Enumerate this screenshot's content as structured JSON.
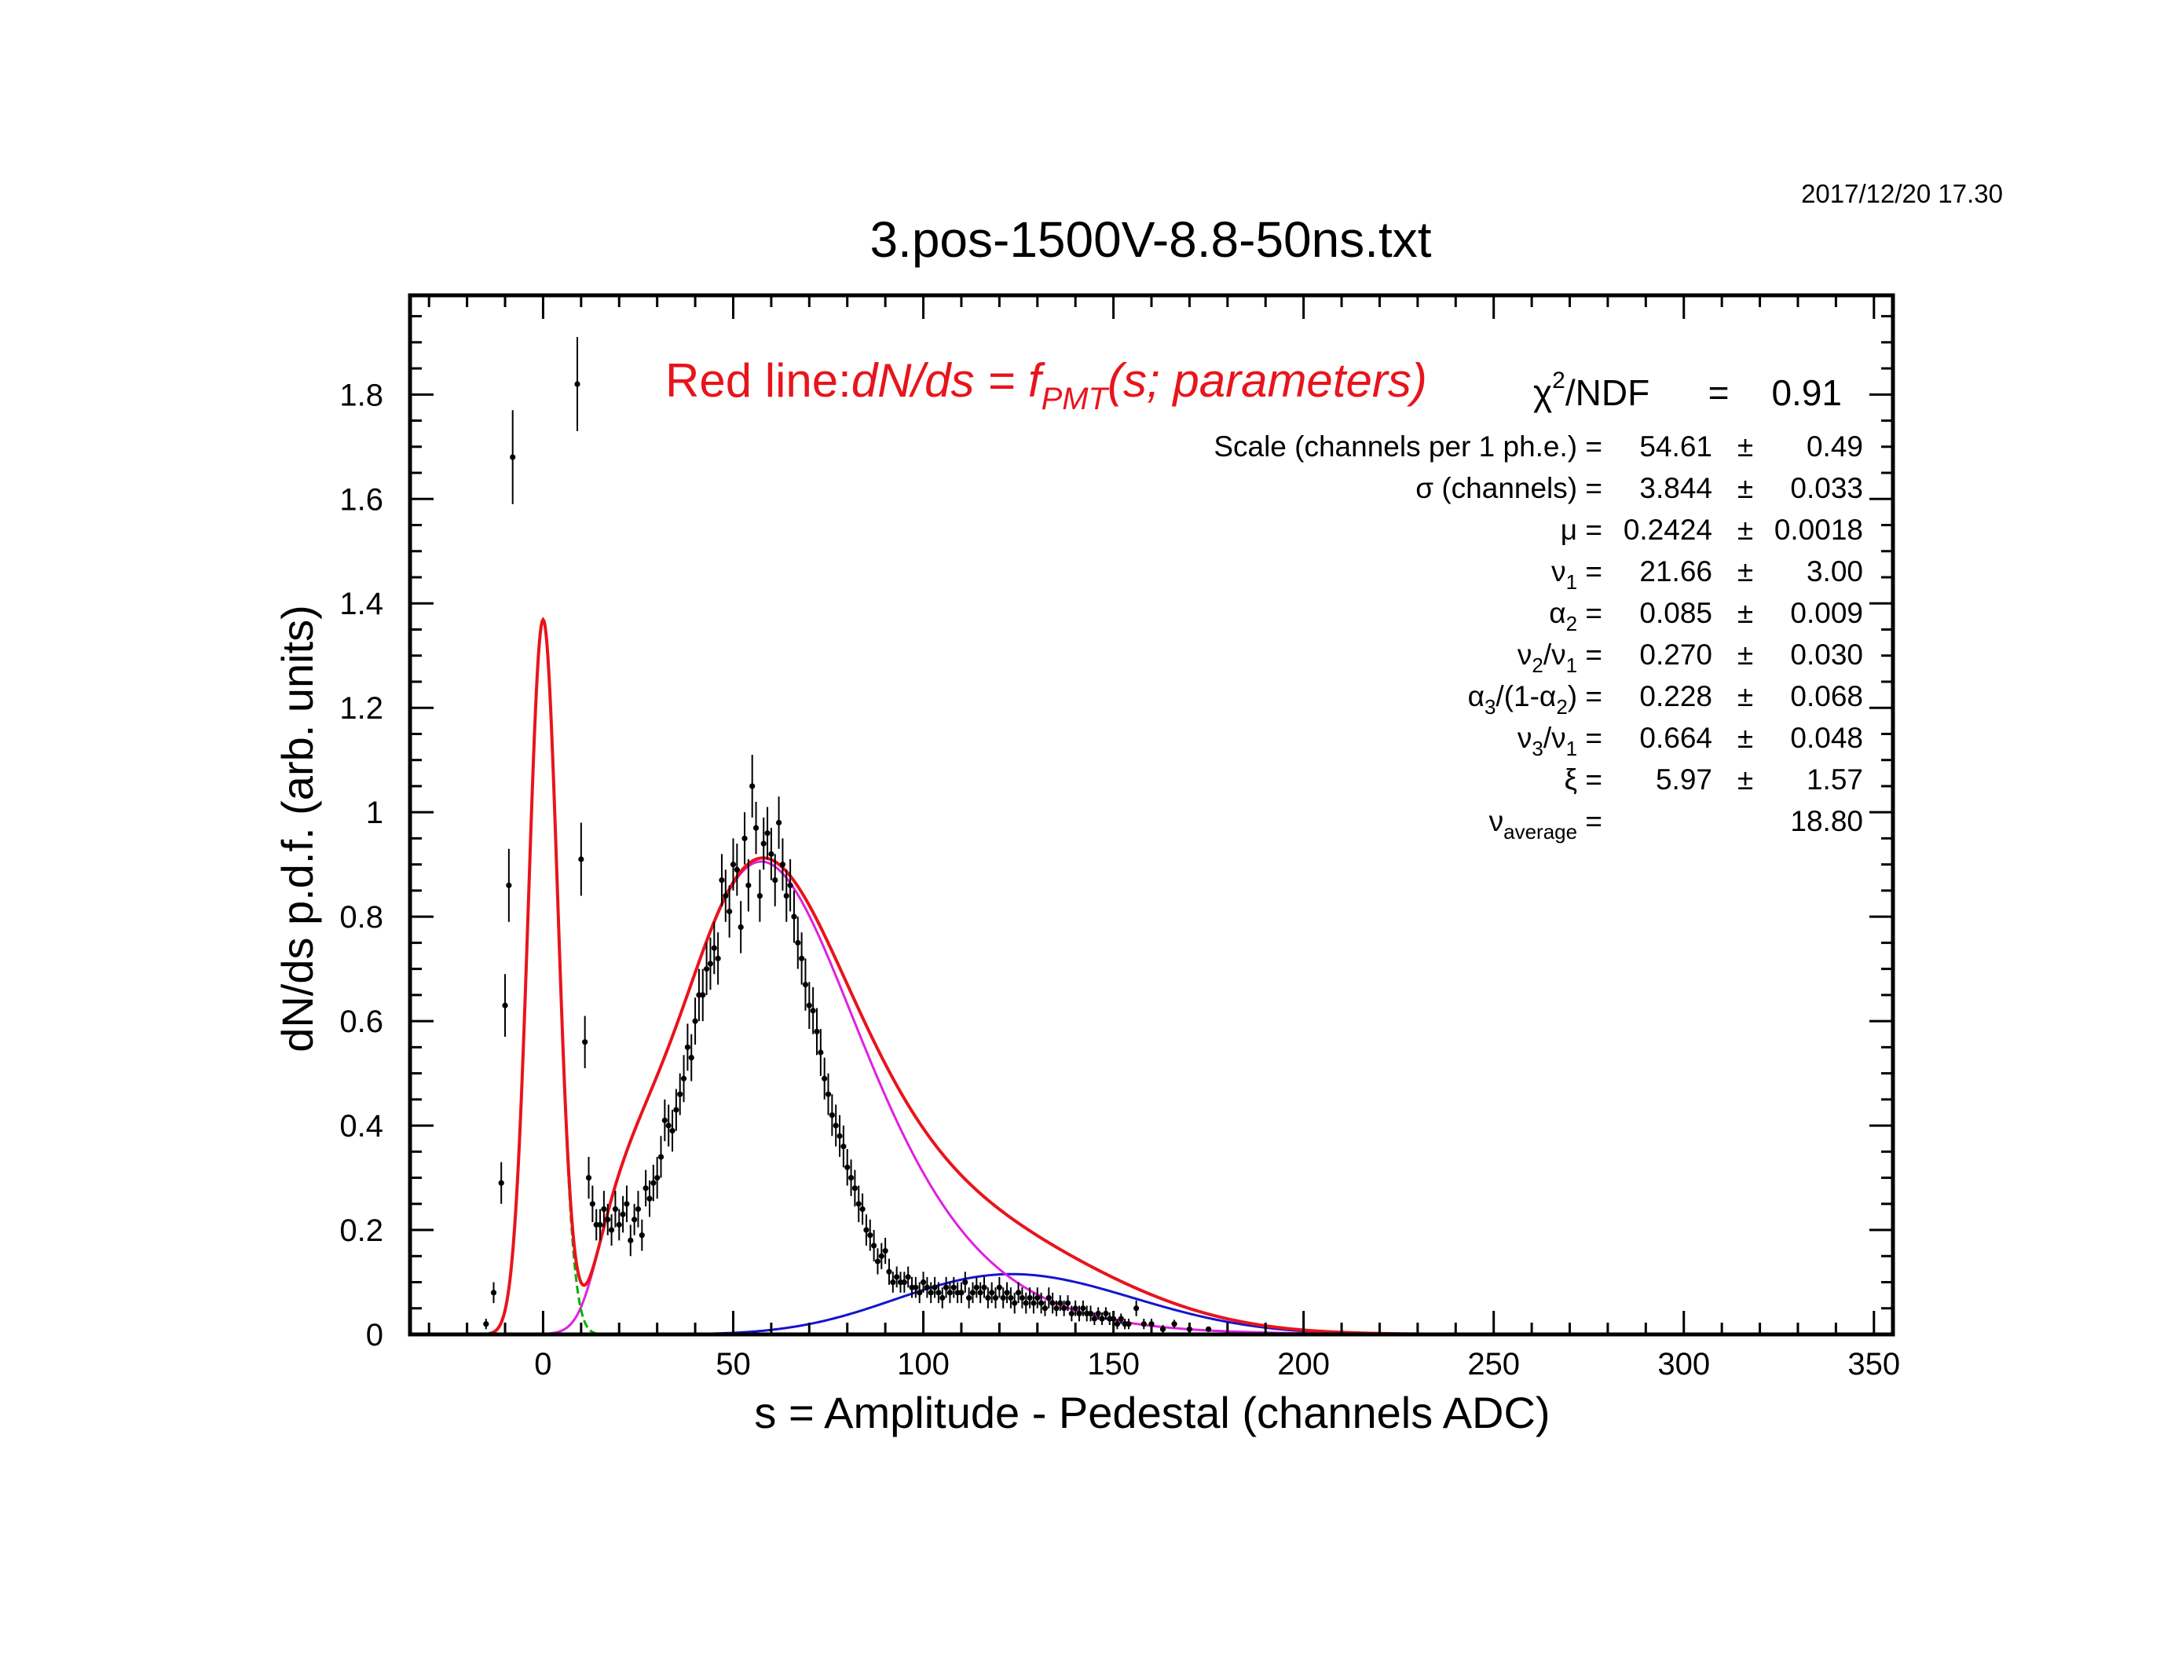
{
  "timestamp": "2017/12/20   17.30",
  "chart_data": {
    "type": "scatter",
    "title": "3.pos-1500V-8.8-50ns.txt",
    "xlabel": "s = Amplitude - Pedestal (channels ADC)",
    "ylabel": "dN/ds p.d.f. (arb. units)",
    "xlim": [
      -35,
      355
    ],
    "ylim": [
      0,
      1.99
    ],
    "x_ticks": [
      0,
      50,
      100,
      150,
      200,
      250,
      300,
      350
    ],
    "y_ticks": [
      0,
      0.2,
      0.4,
      0.6,
      0.8,
      1,
      1.2,
      1.4,
      1.6,
      1.8
    ],
    "x_tick_labels": [
      "0",
      "50",
      "100",
      "150",
      "200",
      "250",
      "300",
      "350"
    ],
    "y_tick_labels": [
      "0",
      "0.2",
      "0.4",
      "0.6",
      "0.8",
      "1",
      "1.2",
      "1.4",
      "1.6",
      "1.8"
    ],
    "grid": false,
    "legend_text": {
      "red_line_label": "Red line:",
      "formula_main": "dN/ds = f",
      "formula_sub": "PMT",
      "formula_tail": "(s; parameters)"
    },
    "fit_results": [
      {
        "label": "Scale (channels per 1 ph.e.) =",
        "value": "54.61",
        "pm": "±",
        "error": "0.49"
      },
      {
        "label": "σ (channels) =",
        "value": "3.844",
        "pm": "±",
        "error": "0.033"
      },
      {
        "label": "μ  =",
        "value": "0.2424",
        "pm": "±",
        "error": "0.0018"
      },
      {
        "label_base": "ν",
        "label_sub": "1",
        "label_tail": " =",
        "value": "21.66",
        "pm": "±",
        "error": "3.00"
      },
      {
        "label_base": "α",
        "label_sub": "2",
        "label_tail": " =",
        "value": "0.085",
        "pm": "±",
        "error": "0.009"
      },
      {
        "label_base": "ν",
        "label_sub": "2",
        "label_mid": "/ν",
        "label_sub2": "1",
        "label_tail": " =",
        "value": "0.270",
        "pm": "±",
        "error": "0.030"
      },
      {
        "label_base": "α",
        "label_sub": "3",
        "label_mid": "/(1-α",
        "label_sub2": "2",
        "label_tail": ") =",
        "value": "0.228",
        "pm": "±",
        "error": "0.068"
      },
      {
        "label_base": "ν",
        "label_sub": "3",
        "label_mid": "/ν",
        "label_sub2": "1",
        "label_tail": " =",
        "value": "0.664",
        "pm": "±",
        "error": "0.048"
      },
      {
        "label": "ξ  =",
        "value": "5.97",
        "pm": "±",
        "error": "1.57"
      },
      {
        "label_base": "ν",
        "label_sub": "average",
        "label_tail": "  =",
        "value": "18.80"
      }
    ],
    "chi2": {
      "base": "χ",
      "sup": "2",
      "tail": "/NDF",
      "eq": "=",
      "value": "0.91"
    },
    "colors": {
      "total_fit": "#e8141c",
      "pedestal": "#00b000",
      "single_pe": "#e020e0",
      "multi_pe": "#1414d0",
      "data_points": "#000000",
      "axis": "#000000"
    },
    "model": {
      "scale": 54.61,
      "sigma": 3.844,
      "mu": 0.2424,
      "nu1": 21.66,
      "alpha2": 0.085,
      "nu2_over_nu1": 0.27,
      "alpha3_over_1ma2": 0.228,
      "nu3_over_nu1": 0.664,
      "xi": 5.97,
      "nu_average": 18.8,
      "chi2_ndf": 0.91
    },
    "data_points": [
      [
        -15.0,
        0.02,
        0.01
      ],
      [
        -13.0,
        0.08,
        0.02
      ],
      [
        -11.0,
        0.29,
        0.04
      ],
      [
        -10.0,
        0.63,
        0.06
      ],
      [
        -9.0,
        0.86,
        0.07
      ],
      [
        -8.0,
        1.68,
        0.09
      ],
      [
        9.0,
        1.82,
        0.09
      ],
      [
        10.0,
        0.91,
        0.07
      ],
      [
        11.0,
        0.56,
        0.05
      ],
      [
        12.0,
        0.3,
        0.04
      ],
      [
        13.0,
        0.25,
        0.035
      ],
      [
        14.0,
        0.21,
        0.03
      ],
      [
        15.0,
        0.21,
        0.03
      ],
      [
        16.0,
        0.24,
        0.035
      ],
      [
        17.0,
        0.22,
        0.03
      ],
      [
        18.0,
        0.2,
        0.03
      ],
      [
        19.0,
        0.24,
        0.035
      ],
      [
        20.0,
        0.21,
        0.03
      ],
      [
        21.0,
        0.23,
        0.035
      ],
      [
        22.0,
        0.25,
        0.035
      ],
      [
        23.0,
        0.18,
        0.03
      ],
      [
        24.0,
        0.22,
        0.03
      ],
      [
        25.0,
        0.24,
        0.035
      ],
      [
        26.0,
        0.19,
        0.03
      ],
      [
        27.0,
        0.28,
        0.035
      ],
      [
        28.0,
        0.26,
        0.035
      ],
      [
        29.0,
        0.29,
        0.035
      ],
      [
        30.0,
        0.3,
        0.04
      ],
      [
        31.0,
        0.34,
        0.04
      ],
      [
        32.0,
        0.41,
        0.04
      ],
      [
        33.0,
        0.4,
        0.04
      ],
      [
        34.0,
        0.39,
        0.04
      ],
      [
        35.0,
        0.43,
        0.04
      ],
      [
        36.0,
        0.46,
        0.04
      ],
      [
        37.0,
        0.49,
        0.045
      ],
      [
        38.0,
        0.55,
        0.045
      ],
      [
        39.0,
        0.53,
        0.045
      ],
      [
        40.0,
        0.6,
        0.045
      ],
      [
        41.0,
        0.65,
        0.05
      ],
      [
        42.0,
        0.65,
        0.05
      ],
      [
        43.0,
        0.7,
        0.05
      ],
      [
        44.0,
        0.71,
        0.05
      ],
      [
        45.0,
        0.74,
        0.05
      ],
      [
        46.0,
        0.72,
        0.05
      ],
      [
        47.0,
        0.87,
        0.05
      ],
      [
        48.0,
        0.84,
        0.05
      ],
      [
        49.0,
        0.81,
        0.05
      ],
      [
        50.0,
        0.9,
        0.05
      ],
      [
        51.0,
        0.89,
        0.05
      ],
      [
        52.0,
        0.78,
        0.05
      ],
      [
        53.0,
        0.95,
        0.05
      ],
      [
        54.0,
        0.86,
        0.05
      ],
      [
        55.0,
        1.05,
        0.06
      ],
      [
        56.0,
        0.97,
        0.05
      ],
      [
        57.0,
        0.84,
        0.05
      ],
      [
        58.0,
        0.94,
        0.05
      ],
      [
        59.0,
        0.96,
        0.05
      ],
      [
        60.0,
        0.92,
        0.05
      ],
      [
        61.0,
        0.87,
        0.05
      ],
      [
        62.0,
        0.98,
        0.05
      ],
      [
        63.0,
        0.9,
        0.05
      ],
      [
        64.0,
        0.84,
        0.05
      ],
      [
        65.0,
        0.86,
        0.05
      ],
      [
        66.0,
        0.8,
        0.05
      ],
      [
        67.0,
        0.75,
        0.05
      ],
      [
        68.0,
        0.72,
        0.05
      ],
      [
        69.0,
        0.67,
        0.05
      ],
      [
        70.0,
        0.63,
        0.045
      ],
      [
        71.0,
        0.62,
        0.045
      ],
      [
        72.0,
        0.58,
        0.045
      ],
      [
        73.0,
        0.54,
        0.045
      ],
      [
        74.0,
        0.49,
        0.04
      ],
      [
        75.0,
        0.46,
        0.04
      ],
      [
        76.0,
        0.42,
        0.04
      ],
      [
        77.0,
        0.4,
        0.04
      ],
      [
        78.0,
        0.38,
        0.04
      ],
      [
        79.0,
        0.36,
        0.04
      ],
      [
        80.0,
        0.32,
        0.035
      ],
      [
        81.0,
        0.3,
        0.035
      ],
      [
        82.0,
        0.28,
        0.035
      ],
      [
        83.0,
        0.25,
        0.035
      ],
      [
        84.0,
        0.24,
        0.03
      ],
      [
        85.0,
        0.2,
        0.03
      ],
      [
        86.0,
        0.19,
        0.03
      ],
      [
        87.0,
        0.17,
        0.03
      ],
      [
        88.0,
        0.14,
        0.025
      ],
      [
        89.0,
        0.15,
        0.025
      ],
      [
        90.0,
        0.16,
        0.025
      ],
      [
        91.0,
        0.12,
        0.025
      ],
      [
        92.0,
        0.1,
        0.02
      ],
      [
        93.0,
        0.11,
        0.02
      ],
      [
        94.0,
        0.1,
        0.02
      ],
      [
        95.0,
        0.1,
        0.02
      ],
      [
        96.0,
        0.11,
        0.02
      ],
      [
        97.0,
        0.09,
        0.02
      ],
      [
        98.0,
        0.09,
        0.02
      ],
      [
        99.0,
        0.08,
        0.02
      ],
      [
        100.0,
        0.1,
        0.02
      ],
      [
        101.0,
        0.09,
        0.02
      ],
      [
        102.0,
        0.08,
        0.02
      ],
      [
        103.0,
        0.09,
        0.02
      ],
      [
        104.0,
        0.08,
        0.02
      ],
      [
        105.0,
        0.07,
        0.02
      ],
      [
        106.0,
        0.09,
        0.02
      ],
      [
        107.0,
        0.08,
        0.02
      ],
      [
        108.0,
        0.09,
        0.02
      ],
      [
        109.0,
        0.08,
        0.02
      ],
      [
        110.0,
        0.08,
        0.02
      ],
      [
        111.0,
        0.1,
        0.02
      ],
      [
        112.0,
        0.07,
        0.02
      ],
      [
        113.0,
        0.08,
        0.02
      ],
      [
        114.0,
        0.09,
        0.02
      ],
      [
        115.0,
        0.08,
        0.02
      ],
      [
        116.0,
        0.09,
        0.02
      ],
      [
        117.0,
        0.07,
        0.02
      ],
      [
        118.0,
        0.08,
        0.02
      ],
      [
        119.0,
        0.07,
        0.02
      ],
      [
        120.0,
        0.09,
        0.02
      ],
      [
        121.0,
        0.07,
        0.02
      ],
      [
        122.0,
        0.08,
        0.02
      ],
      [
        123.0,
        0.07,
        0.02
      ],
      [
        124.0,
        0.06,
        0.02
      ],
      [
        125.0,
        0.08,
        0.02
      ],
      [
        126.0,
        0.07,
        0.02
      ],
      [
        127.0,
        0.06,
        0.02
      ],
      [
        128.0,
        0.07,
        0.02
      ],
      [
        129.0,
        0.06,
        0.02
      ],
      [
        130.0,
        0.07,
        0.02
      ],
      [
        131.0,
        0.06,
        0.02
      ],
      [
        132.0,
        0.05,
        0.015
      ],
      [
        133.0,
        0.07,
        0.02
      ],
      [
        134.0,
        0.06,
        0.02
      ],
      [
        135.0,
        0.05,
        0.015
      ],
      [
        136.0,
        0.06,
        0.015
      ],
      [
        137.0,
        0.05,
        0.015
      ],
      [
        138.0,
        0.06,
        0.015
      ],
      [
        139.0,
        0.04,
        0.015
      ],
      [
        140.0,
        0.05,
        0.015
      ],
      [
        141.0,
        0.04,
        0.015
      ],
      [
        142.0,
        0.05,
        0.015
      ],
      [
        143.0,
        0.04,
        0.015
      ],
      [
        144.0,
        0.04,
        0.015
      ],
      [
        145.0,
        0.03,
        0.012
      ],
      [
        146.0,
        0.04,
        0.012
      ],
      [
        147.0,
        0.03,
        0.012
      ],
      [
        148.0,
        0.04,
        0.012
      ],
      [
        149.0,
        0.03,
        0.012
      ],
      [
        150.0,
        0.03,
        0.012
      ],
      [
        151.0,
        0.02,
        0.01
      ],
      [
        152.0,
        0.03,
        0.01
      ],
      [
        153.0,
        0.02,
        0.01
      ],
      [
        154.0,
        0.02,
        0.01
      ],
      [
        156.0,
        0.05,
        0.015
      ],
      [
        158.0,
        0.02,
        0.01
      ],
      [
        160.0,
        0.02,
        0.01
      ],
      [
        163.0,
        0.01,
        0.008
      ],
      [
        166.0,
        0.02,
        0.008
      ],
      [
        170.0,
        0.01,
        0.006
      ],
      [
        175.0,
        0.01,
        0.005
      ]
    ]
  }
}
